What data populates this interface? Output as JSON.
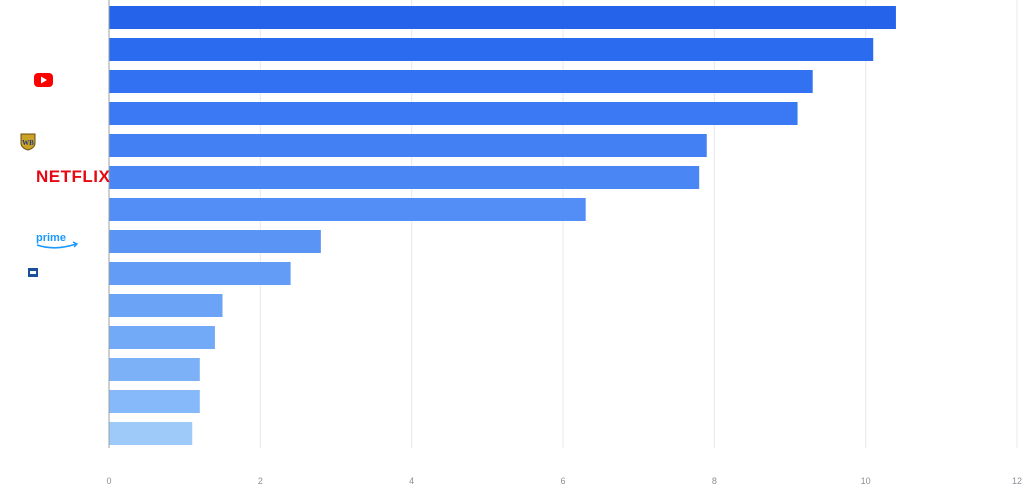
{
  "chart_data": {
    "type": "bar",
    "orientation": "horizontal",
    "values": [
      10.4,
      10.1,
      9.3,
      9.1,
      7.9,
      7.8,
      6.3,
      2.8,
      2.4,
      1.5,
      1.4,
      1.2,
      1.2,
      1.1
    ],
    "xlim": [
      0,
      12
    ],
    "xticks": [
      "0",
      "2",
      "4",
      "6",
      "8",
      "10",
      "12"
    ],
    "grid": "vertical",
    "colors": [
      "#2563eb",
      "#2b6bf0",
      "#3272f2",
      "#3a79f3",
      "#4280f4",
      "#4a87f5",
      "#528ef6",
      "#5a95f6",
      "#629cf7",
      "#6ba3f7",
      "#73aaf8",
      "#7cb1f8",
      "#86b9f9",
      "#9dcaf9"
    ],
    "logo_rows": {
      "youtube": 2,
      "warner-bros": 4,
      "netflix": 5,
      "prime": 7,
      "small-logo": 8
    },
    "logos": {
      "netflix_text": "NETFLIX",
      "prime_text": "prime",
      "wb_text": "WB"
    }
  }
}
